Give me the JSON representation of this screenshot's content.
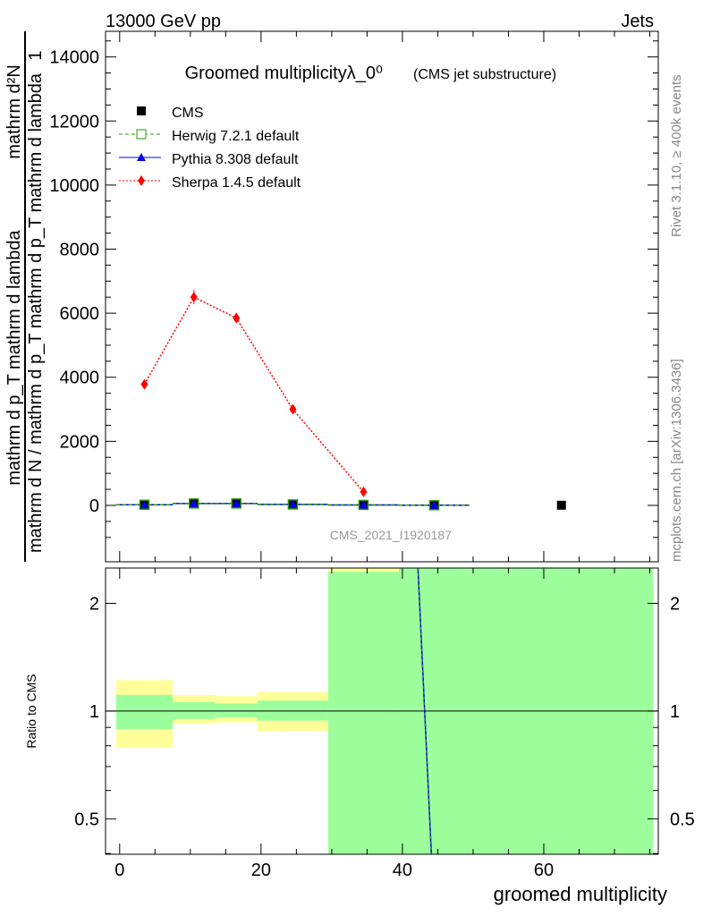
{
  "header": {
    "left": "13000 GeV pp",
    "right": "Jets"
  },
  "side": {
    "rivet": "Rivet 3.1.10, ≥ 400k events",
    "mcplots": "mcplots.cern.ch [arXiv:1306.3436]"
  },
  "chart_data": [
    {
      "type": "scatter",
      "title": "Groomed multiplicityλ_0⁰",
      "subtitle": "(CMS jet substructure)",
      "ylabel_parts": [
        "mathrm d²N",
        "mathrm d p_T mathrm d lambda",
        "1",
        "mathrm d N / mathrm d p_T mathrm d p_T mathrm d lambda"
      ],
      "analysis": "CMS_2021_I1920187",
      "xlim": [
        -2,
        76.2
      ],
      "ylim": [
        -1760,
        14800
      ],
      "yticks": [
        0,
        2000,
        4000,
        6000,
        8000,
        10000,
        12000,
        14000
      ],
      "ytick_labels": [
        "0",
        "2000",
        "4000",
        "6000",
        "8000",
        "10000",
        "12000",
        "14000"
      ],
      "legend": [
        "CMS",
        "Herwig 7.2.1 default",
        "Pythia 8.308 default",
        "Sherpa 1.4.5 default"
      ],
      "bins": [
        [
          -0.5,
          7.5
        ],
        [
          7.5,
          13.5
        ],
        [
          13.5,
          19.5
        ],
        [
          19.5,
          29.5
        ],
        [
          29.5,
          39.5
        ],
        [
          39.5,
          49.5
        ],
        [
          49.5,
          75.5
        ]
      ],
      "x": [
        3.5,
        10.5,
        16.5,
        24.5,
        34.5,
        44.5,
        62.5
      ],
      "series": [
        {
          "name": "CMS",
          "values": [
            20,
            60,
            60,
            30,
            15,
            5,
            5
          ],
          "color": "#000000"
        },
        {
          "name": "Herwig 7.2.1 default",
          "values": [
            20,
            60,
            60,
            30,
            15,
            5,
            null
          ],
          "color": "#2a9a00"
        },
        {
          "name": "Pythia 8.308 default",
          "values": [
            20,
            60,
            60,
            30,
            15,
            5,
            null
          ],
          "color": "#0000ee"
        },
        {
          "name": "Sherpa 1.4.5 default",
          "values": [
            3780,
            6500,
            5850,
            3000,
            420,
            null,
            null
          ],
          "errors": [
            130,
            220,
            160,
            80,
            60,
            null,
            null
          ],
          "color": "#ff0000"
        }
      ]
    },
    {
      "type": "area",
      "ylabel": "Ratio to CMS",
      "xlabel": "groomed multiplicity",
      "ylim": [
        0.398,
        2.51
      ],
      "yscale": "log",
      "yticks": [
        0.5,
        1,
        2
      ],
      "ytick_labels": [
        "0.5",
        "1",
        "2"
      ],
      "xticks": [
        0,
        20,
        40,
        60
      ],
      "xtick_labels": [
        "0",
        "20",
        "40",
        "60"
      ],
      "bands": [
        {
          "bin": [
            -0.5,
            7.5
          ],
          "yellow": [
            0.79,
            1.22
          ],
          "green": [
            0.89,
            1.11
          ]
        },
        {
          "bin": [
            7.5,
            13.5
          ],
          "yellow": [
            0.92,
            1.11
          ],
          "green": [
            0.95,
            1.06
          ]
        },
        {
          "bin": [
            13.5,
            19.5
          ],
          "yellow": [
            0.93,
            1.1
          ],
          "green": [
            0.96,
            1.05
          ]
        },
        {
          "bin": [
            19.5,
            29.5
          ],
          "yellow": [
            0.88,
            1.13
          ],
          "green": [
            0.94,
            1.07
          ]
        },
        {
          "bin": [
            29.5,
            39.5
          ],
          "yellow": [
            0.398,
            2.51
          ],
          "green": [
            0.398,
            2.45
          ]
        },
        {
          "bin": [
            39.5,
            75.5
          ],
          "yellow": [
            0.398,
            2.51
          ],
          "green": [
            0.398,
            2.51
          ]
        }
      ],
      "pythia_line": [
        [
          42.2,
          2.51
        ],
        [
          44.1,
          0.398
        ]
      ]
    }
  ]
}
